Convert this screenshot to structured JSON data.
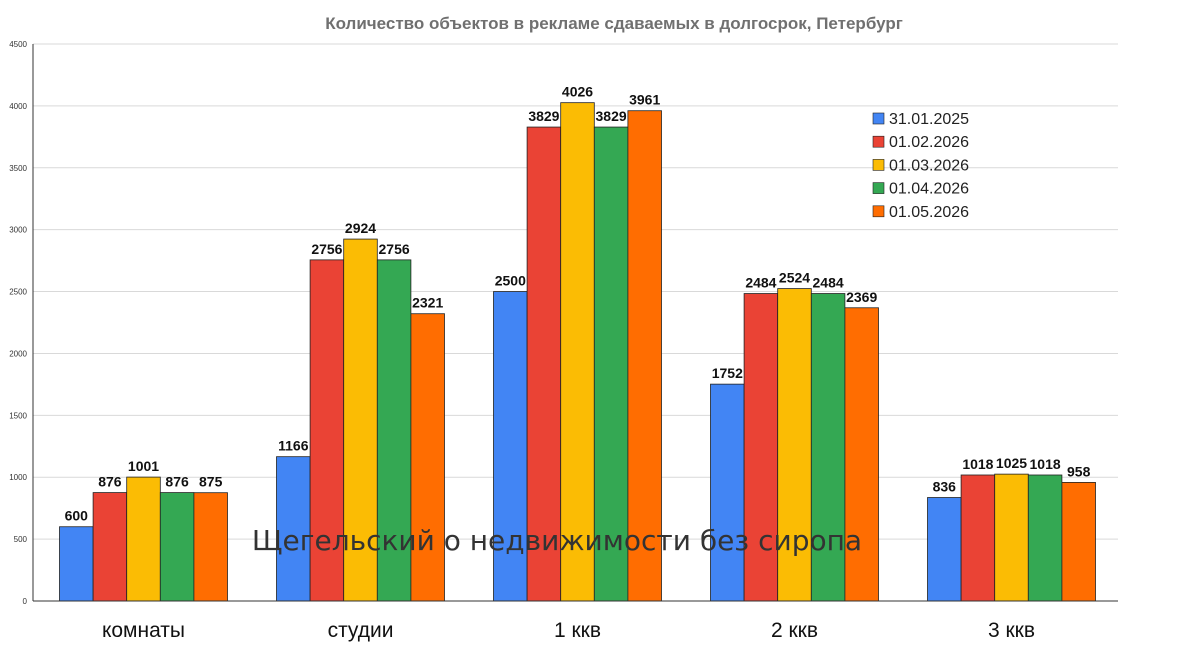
{
  "chart_data": {
    "type": "bar",
    "title": "Количество объектов в рекламе сдаваемых в долгосрок, Петербург",
    "xlabel": "",
    "ylabel": "",
    "ylim": [
      0,
      4500
    ],
    "yticks": [
      0,
      500,
      1000,
      1500,
      2000,
      2500,
      3000,
      3500,
      4000,
      4500
    ],
    "grid": true,
    "legend_position": "top-right",
    "categories": [
      "комнаты",
      "студии",
      "1 ккв",
      "2 ккв",
      "3 ккв"
    ],
    "series": [
      {
        "name": "31.01.2025",
        "color": "#4285f4",
        "values": [
          600,
          1166,
          2500,
          1752,
          836
        ]
      },
      {
        "name": "01.02.2026",
        "color": "#ea4335",
        "values": [
          876,
          2756,
          3829,
          2484,
          1018
        ]
      },
      {
        "name": "01.03.2026",
        "color": "#fbbc04",
        "values": [
          1001,
          2924,
          4026,
          2524,
          1025
        ]
      },
      {
        "name": "01.04.2026",
        "color": "#34a853",
        "values": [
          876,
          2756,
          3829,
          2484,
          1018
        ]
      },
      {
        "name": "01.05.2026",
        "color": "#ff6d01",
        "values": [
          875,
          2321,
          3961,
          2369,
          958
        ]
      }
    ],
    "annotation": "Щегельский о недвижимости без сиропа"
  }
}
